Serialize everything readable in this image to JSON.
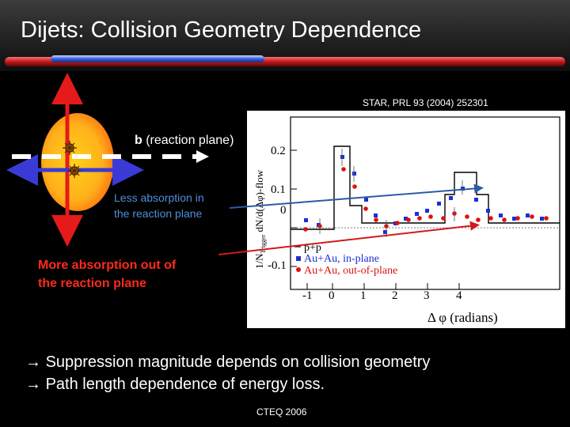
{
  "slide": {
    "title": "Dijets: Collision Geometry Dependence",
    "source": "STAR, PRL 93 (2004) 252301",
    "b_label_bold": "b",
    "b_label_rest": " (reaction plane)",
    "less_line1": "Less absorption in",
    "less_line2": "the reaction plane",
    "more_line1": "More absorption out of",
    "more_line2": "the reaction plane",
    "bullet1": "Suppression magnitude depends on collision geometry",
    "bullet2": "Path length dependence of energy loss.",
    "bullet_symbol": "→",
    "footer": "CTEQ 2006"
  },
  "plot": {
    "ylabel": "1/N",
    "ylabel_sub": "Trigger",
    "ylabel_rest": " dN/d(Δφ)-flow",
    "xlabel": "Δ φ (radians)",
    "yticks": [
      "0.2",
      "0.1",
      "0",
      "-0.1"
    ],
    "xticks": [
      "-1",
      "0",
      "1",
      "2",
      "3",
      "4"
    ],
    "legend": [
      {
        "label": "p+p",
        "color": "#000000"
      },
      {
        "label": "Au+Au, in-plane",
        "color": "#1a2fd6"
      },
      {
        "label": "Au+Au, out-of-plane",
        "color": "#e01010"
      }
    ]
  },
  "colors": {
    "accent_blue": "#4f8ed8",
    "accent_red": "#ff2a1a",
    "ellipse_yellow": "#ffd11a",
    "ellipse_orange": "#ff7a12"
  }
}
